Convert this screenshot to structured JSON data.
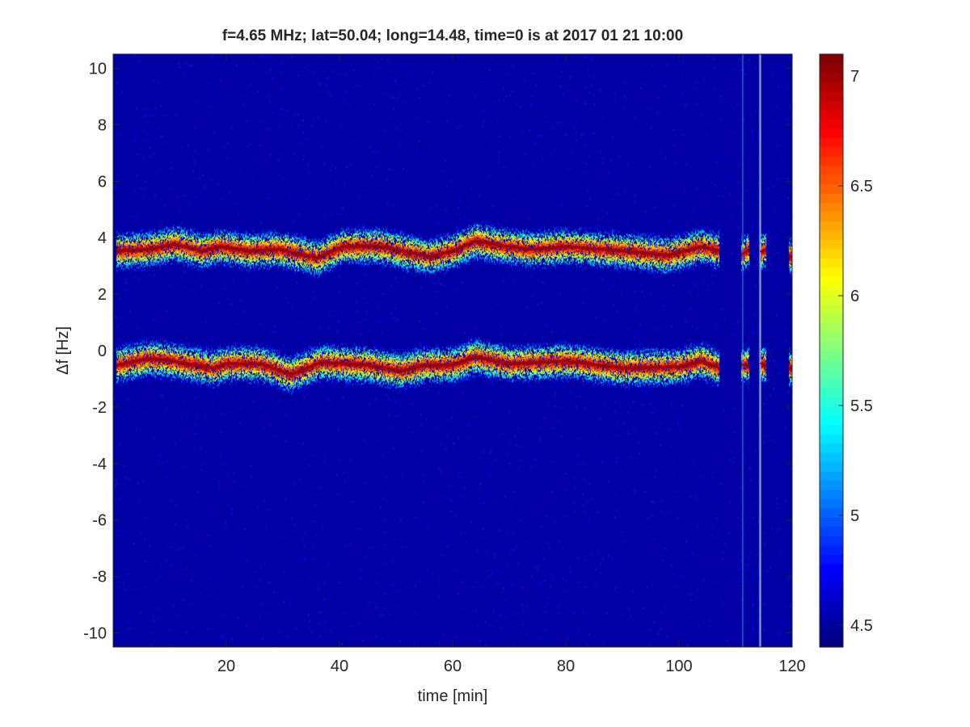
{
  "chart_data": {
    "type": "heatmap",
    "title": "f=4.65 MHz;  lat=50.04; long=14.48, time=0 is at 2017 01 21 10:00",
    "xlabel": "time [min]",
    "ylabel": "Δf [Hz]",
    "xlim": [
      0,
      120
    ],
    "ylim": [
      -10.5,
      10.5
    ],
    "xticks": [
      20,
      40,
      60,
      80,
      100,
      120
    ],
    "yticks": [
      -10,
      -8,
      -6,
      -4,
      -2,
      0,
      2,
      4,
      6,
      8,
      10
    ],
    "colormap": "jet",
    "clim": [
      4.4,
      7.1
    ],
    "colorbar_ticks": [
      4.5,
      5,
      5.5,
      6,
      6.5,
      7
    ],
    "grid": false,
    "data_segments_min": [
      [
        0.5,
        107
      ],
      [
        111,
        112.3
      ],
      [
        114.3,
        115.3
      ],
      [
        119.3,
        120
      ]
    ],
    "vertical_artifacts_min": [
      111.2,
      114.2
    ],
    "traces": [
      {
        "t": [
          0.5,
          6,
          11,
          15.7,
          19,
          24,
          29.5,
          36,
          40.5,
          46.7,
          56,
          60,
          64,
          68,
          74,
          80,
          90,
          98,
          104,
          107,
          111,
          112.3,
          114.3,
          115.3,
          119.3,
          120
        ],
        "df": [
          3.55,
          3.6,
          3.78,
          3.55,
          3.7,
          3.55,
          3.6,
          3.3,
          3.7,
          3.72,
          3.35,
          3.55,
          3.9,
          3.75,
          3.6,
          3.7,
          3.55,
          3.4,
          3.7,
          3.55,
          3.4,
          3.6,
          3.5,
          3.6,
          3.35,
          3.35
        ]
      },
      {
        "t": [
          0.5,
          6,
          9,
          17.6,
          20,
          26,
          31.4,
          36.7,
          45,
          51,
          55,
          60,
          64,
          70,
          80,
          90,
          100,
          104,
          107,
          111,
          112.3,
          114.3,
          115.3,
          119.3,
          120
        ],
        "df": [
          -0.5,
          -0.27,
          -0.3,
          -0.6,
          -0.45,
          -0.45,
          -0.83,
          -0.4,
          -0.5,
          -0.7,
          -0.5,
          -0.5,
          -0.2,
          -0.45,
          -0.35,
          -0.6,
          -0.55,
          -0.35,
          -0.6,
          -0.5,
          -0.5,
          -0.45,
          -0.5,
          -0.6,
          -0.6
        ]
      }
    ]
  }
}
